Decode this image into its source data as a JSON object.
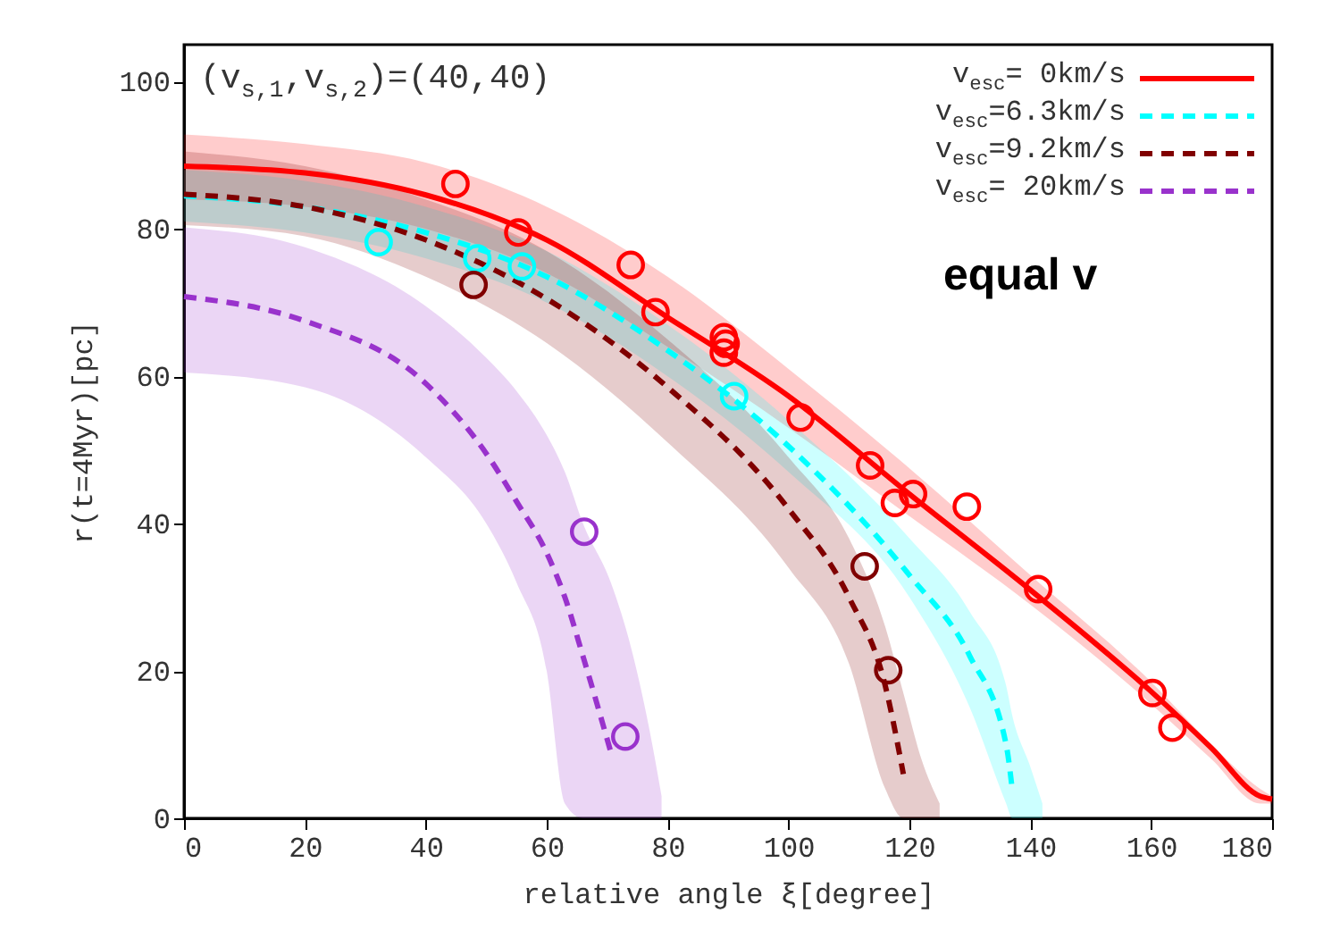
{
  "chart_data": {
    "type": "line",
    "xlabel": "relative angle ξ[degree]",
    "ylabel": "r(t=4Myr)[pc]",
    "annotations": [
      "(v$_{s,1}$,v$_{s,2}$)=(40,40)",
      "equal v"
    ],
    "xlim": [
      0,
      180
    ],
    "xticks": [
      0,
      20,
      40,
      60,
      80,
      100,
      120,
      140,
      160,
      180
    ],
    "ylim": [
      0,
      105
    ],
    "yticks": [
      0,
      20,
      40,
      60,
      80,
      100
    ],
    "legend": "top right",
    "grid": false,
    "series": [
      {
        "name": "v$_{esc}$=  0km/s",
        "line_style": "solid",
        "color": "#ff0000",
        "x": [
          0,
          20,
          40,
          60,
          80,
          100,
          120,
          140,
          160,
          170,
          178,
          180
        ],
        "values": [
          88.5,
          87.6,
          84.6,
          78.5,
          68,
          57.3,
          44,
          31,
          17.2,
          9.5,
          3,
          2.6
        ],
        "upper": [
          92.8,
          91.5,
          89,
          83,
          73.5,
          61,
          47.5,
          33,
          18.5,
          10,
          4,
          3
        ],
        "lower": [
          84,
          83,
          80,
          74,
          64,
          53,
          41,
          29,
          15.5,
          8,
          2,
          2
        ]
      },
      {
        "name": "v$_{esc}$=6.3km/s",
        "line_style": "dashed",
        "color": "#00ffff",
        "x": [
          0,
          20,
          40,
          60,
          80,
          100,
          120,
          130,
          136,
          137,
          140,
          142
        ],
        "values": [
          84.5,
          83,
          79.5,
          73.5,
          63.5,
          50.5,
          33,
          22,
          10,
          4,
          null,
          null
        ],
        "upper": [
          88,
          86.5,
          83,
          77,
          67,
          54,
          38,
          28,
          18,
          14,
          7,
          2
        ],
        "lower": [
          81,
          79.5,
          76,
          70,
          60,
          47,
          30,
          15,
          2,
          0,
          0,
          0
        ]
      },
      {
        "name": "v$_{esc}$=9.2km/s",
        "line_style": "dashed",
        "color": "#800000",
        "x": [
          0,
          20,
          40,
          60,
          80,
          100,
          110,
          116,
          119,
          122,
          125
        ],
        "values": [
          84.7,
          83,
          78.5,
          70.5,
          58.5,
          42,
          30,
          18,
          6,
          null,
          null
        ],
        "upper": [
          90.5,
          88.5,
          84,
          77,
          65,
          49,
          38,
          26,
          17,
          8,
          2
        ],
        "lower": [
          80.5,
          79,
          73.5,
          64.5,
          51,
          34,
          21,
          4,
          0,
          0,
          0
        ]
      },
      {
        "name": "v$_{esc}$= 20km/s",
        "line_style": "dashed",
        "color": "#9932cc",
        "x": [
          0,
          20,
          40,
          50,
          55,
          60,
          63,
          66,
          70.6,
          74,
          77,
          79
        ],
        "values": [
          70.8,
          67.5,
          59,
          49.5,
          43,
          36,
          30,
          22,
          9,
          null,
          null,
          null
        ],
        "upper": [
          80.2,
          77.5,
          69.5,
          62.5,
          58,
          52,
          47,
          40,
          32,
          23,
          12,
          3
        ],
        "lower": [
          60.5,
          58.5,
          49,
          40,
          32,
          20,
          2,
          0,
          0,
          0,
          0,
          0
        ]
      },
      {
        "type": "scatter",
        "marker": "circle",
        "color": "#ff0000",
        "x": [
          44.9,
          55.3,
          73.9,
          78,
          89.3,
          89.6,
          89.3,
          102,
          113.5,
          117.6,
          120.6,
          129.5,
          141.3,
          160.2,
          163.5
        ],
        "values": [
          86.1,
          79.5,
          75.1,
          68.7,
          65.3,
          64.4,
          63.2,
          54.4,
          47.9,
          42.8,
          44,
          42.3,
          31.1,
          17,
          12.3
        ]
      },
      {
        "type": "scatter",
        "marker": "circle",
        "color": "#00ffff",
        "x": [
          32.2,
          48.5,
          55.9,
          91
        ],
        "values": [
          78.2,
          76,
          74.9,
          57.3
        ]
      },
      {
        "type": "scatter",
        "marker": "circle",
        "color": "#800000",
        "x": [
          47.9,
          112.6,
          116.5
        ],
        "values": [
          72.4,
          34.2,
          20.1
        ]
      },
      {
        "type": "scatter",
        "marker": "circle",
        "color": "#9932cc",
        "x": [
          66.2,
          73
        ],
        "values": [
          38.9,
          11.1
        ]
      }
    ]
  }
}
